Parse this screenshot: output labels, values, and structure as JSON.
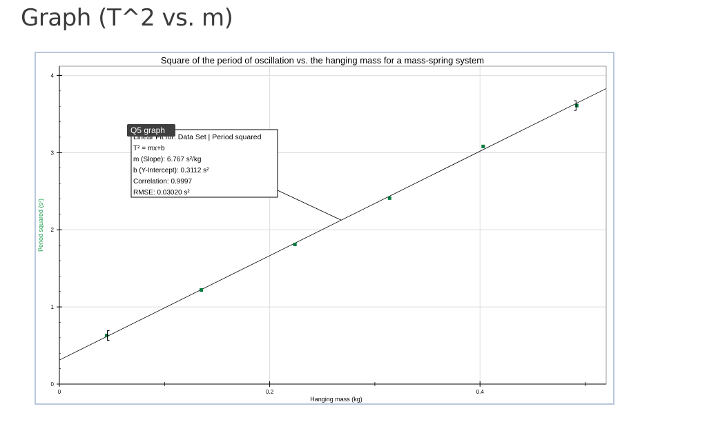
{
  "page": {
    "title": "Graph (T^2 vs. m)"
  },
  "chart_data": {
    "type": "scatter",
    "title": "Square of the period of oscillation vs. the hanging mass for a mass-spring system",
    "xlabel": "Hanging mass  (kg)",
    "ylabel": "Period squared (s²)",
    "xlim": [
      0,
      0.52
    ],
    "ylim": [
      0,
      4.12
    ],
    "x_ticks": [
      "0",
      "0.2",
      "0.4"
    ],
    "x_tick_values": [
      0,
      0.2,
      0.4
    ],
    "y_ticks": [
      "0",
      "1",
      "2",
      "3",
      "4"
    ],
    "y_tick_values": [
      0,
      1,
      2,
      3,
      4
    ],
    "grid": true,
    "series": [
      {
        "name": "Period squared",
        "x": [
          0.045,
          0.135,
          0.224,
          0.314,
          0.403,
          0.492
        ],
        "y": [
          0.63,
          1.22,
          1.81,
          2.41,
          3.08,
          3.61
        ],
        "error_bar_points": [
          0,
          5
        ],
        "color": "#007a3d"
      }
    ],
    "fit": {
      "slope": 6.767,
      "intercept": 0.3112
    },
    "annotation": {
      "tab_label": "Q5 graph",
      "header": "Linear Fit for: Data Set | Period squared",
      "lines": [
        "T² = mx+b",
        "m (Slope): 6.767 s²/kg",
        "b (Y-Intercept): 0.3112 s²",
        "Correlation: 0.9997",
        "RMSE: 0.03020 s²"
      ],
      "pointer_x": 0.268
    },
    "ylabel_color": "#1a9c4a"
  }
}
